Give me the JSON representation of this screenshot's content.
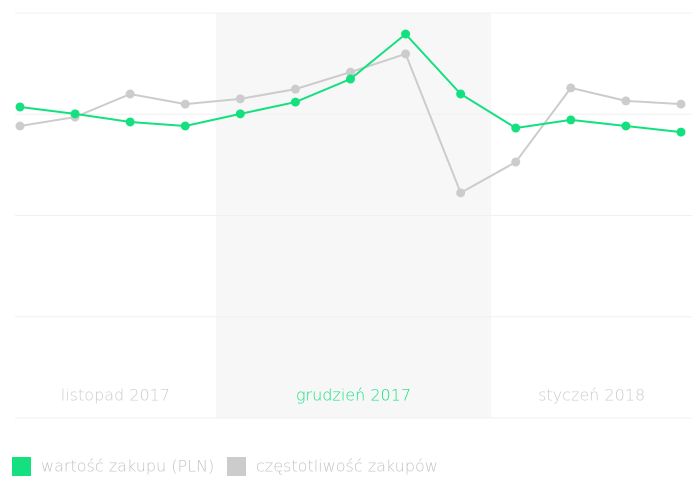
{
  "chart_data": {
    "type": "line",
    "periods": [
      {
        "label": "listopad 2017",
        "start": 0
      },
      {
        "label": "grudzień 2017",
        "start": 4,
        "highlight": true
      },
      {
        "label": "styczeń 2018",
        "start": 9
      }
    ],
    "series": [
      {
        "name": "wartość zakupu (PLN)",
        "color": "#14e07f",
        "values": [
          76.8,
          75.1,
          73.1,
          72.1,
          75.1,
          78.0,
          83.7,
          94.8,
          80.0,
          71.6,
          73.6,
          72.1,
          70.6
        ]
      },
      {
        "name": "częstotliwość zakupów",
        "color": "#cccccc",
        "values": [
          72.1,
          74.3,
          80.0,
          77.5,
          78.8,
          81.2,
          85.4,
          89.9,
          55.6,
          63.2,
          81.5,
          78.3,
          77.5
        ]
      }
    ],
    "ylim": [
      0,
      100
    ],
    "yticks": [
      0,
      25,
      50,
      75,
      100
    ],
    "grid": true
  }
}
